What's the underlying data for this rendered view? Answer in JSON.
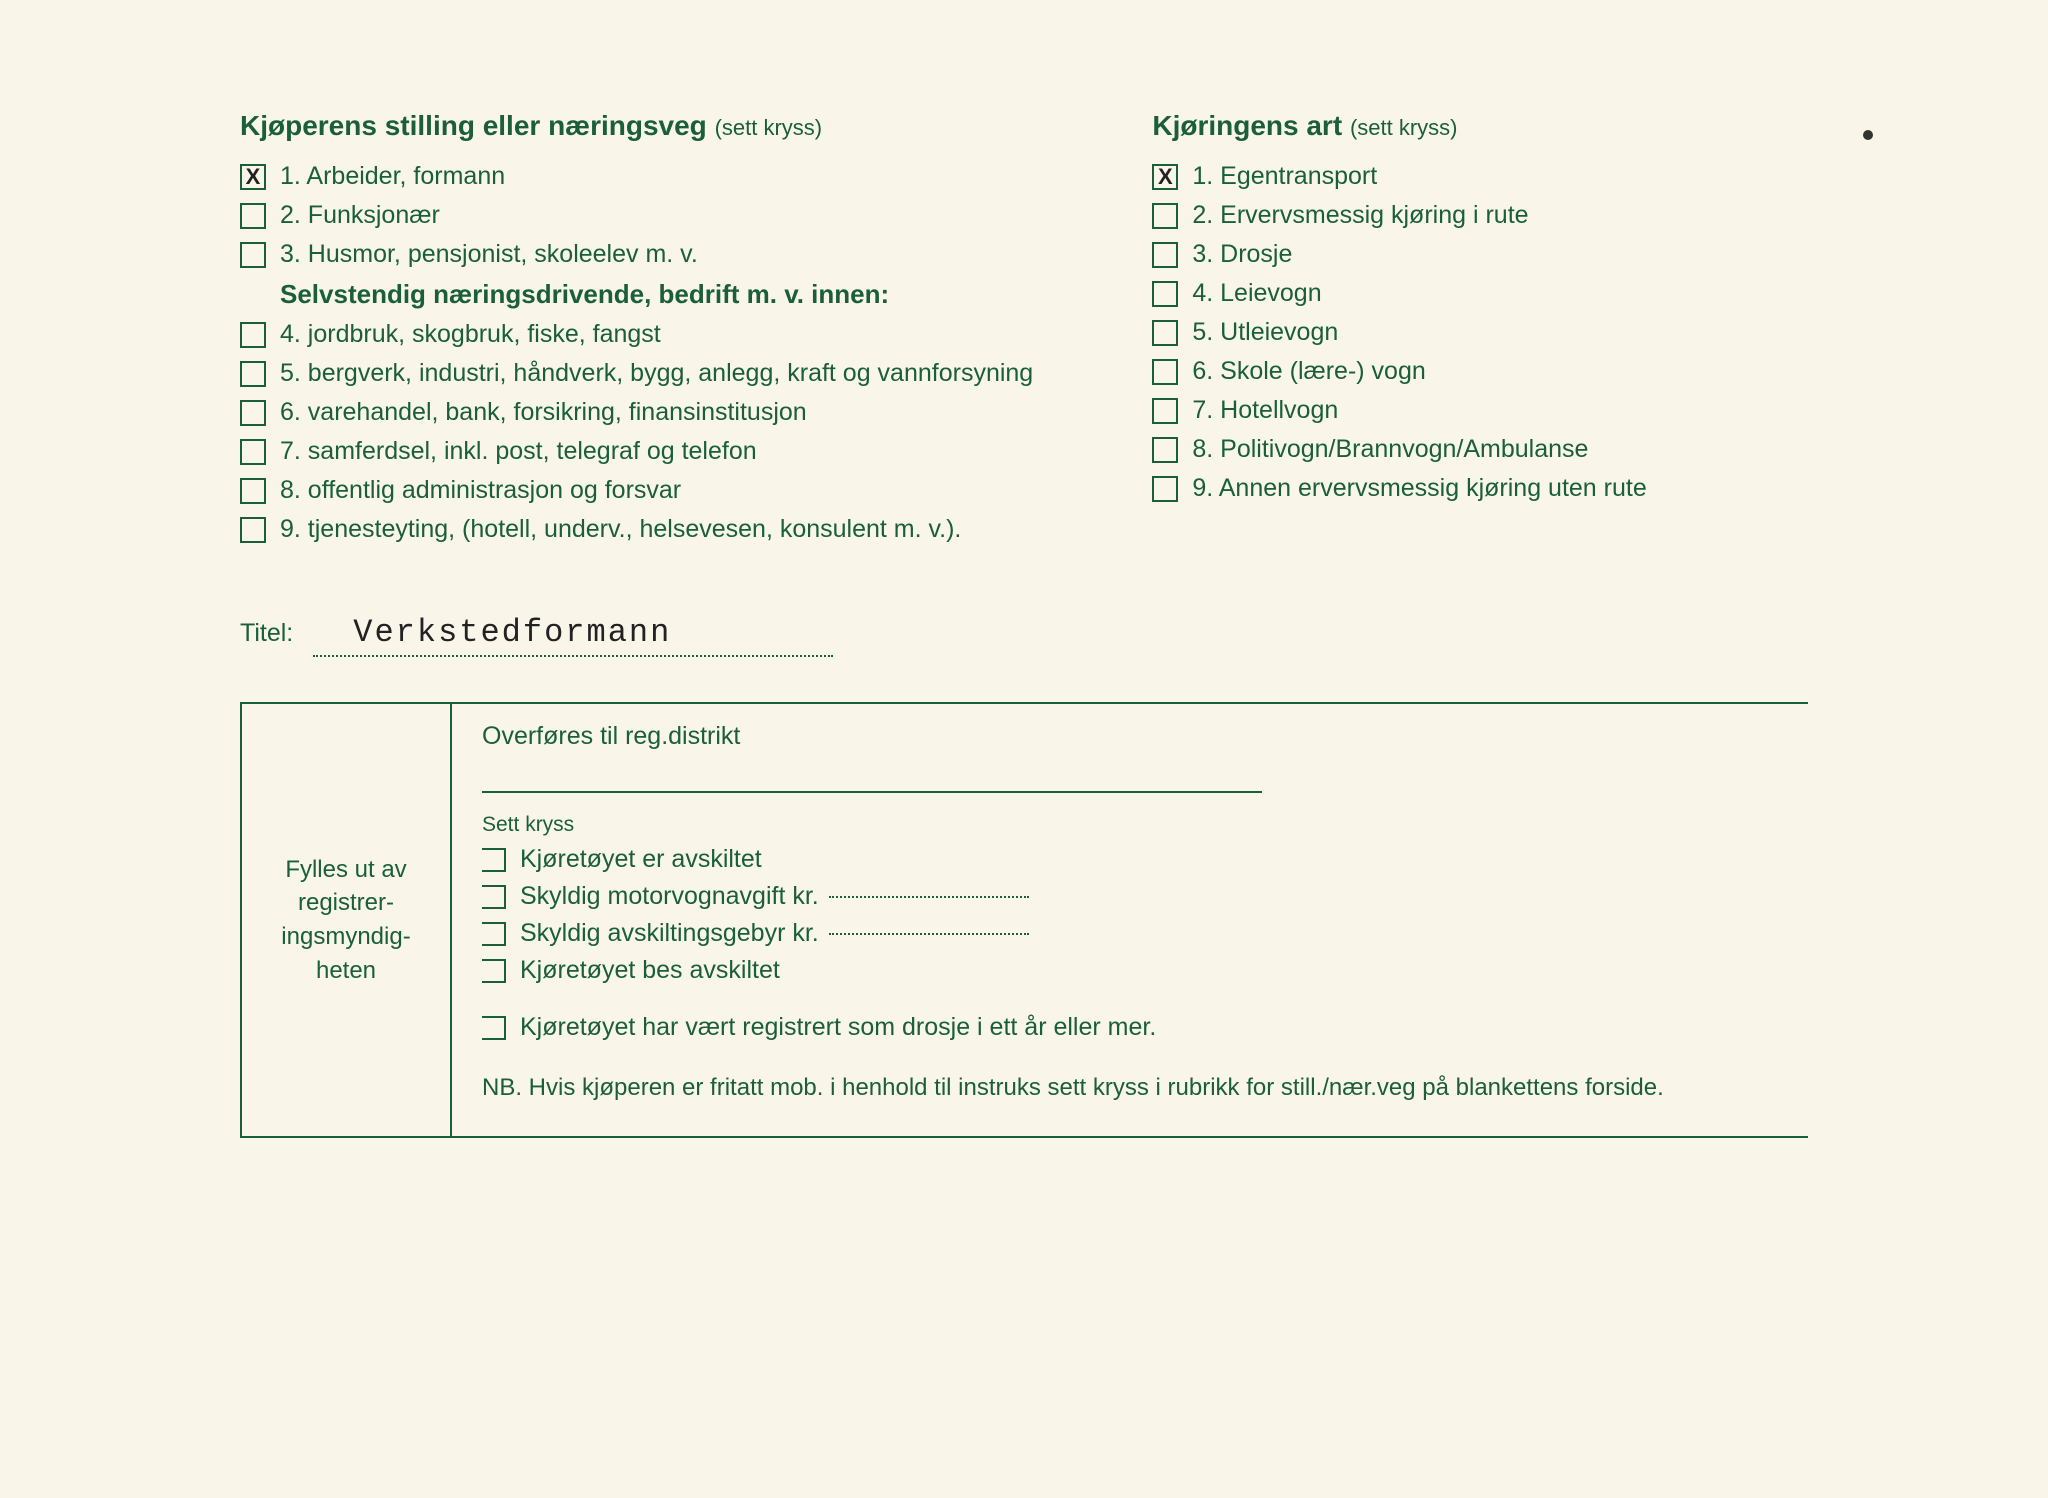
{
  "colors": {
    "text": "#1a5f3a",
    "background": "#f9f5e8",
    "typed": "#222222"
  },
  "leftSection": {
    "headingBold": "Kjøperens stilling eller næringsveg",
    "headingSmall": "(sett kryss)",
    "items": [
      {
        "num": "1.",
        "label": "Arbeider, formann",
        "checked": true
      },
      {
        "num": "2.",
        "label": "Funksjonær",
        "checked": false
      },
      {
        "num": "3.",
        "label": "Husmor, pensjonist, skoleelev m. v.",
        "checked": false
      }
    ],
    "subheading": "Selvstendig næringsdrivende, bedrift m. v. innen:",
    "subitems": [
      {
        "num": "4.",
        "label": "jordbruk, skogbruk, fiske, fangst",
        "checked": false
      },
      {
        "num": "5.",
        "label": "bergverk, industri, håndverk, bygg, anlegg, kraft og vannforsyning",
        "checked": false
      },
      {
        "num": "6.",
        "label": "varehandel, bank, forsikring, finansinstitusjon",
        "checked": false
      },
      {
        "num": "7.",
        "label": "samferdsel, inkl. post, telegraf og telefon",
        "checked": false
      },
      {
        "num": "8.",
        "label": "offentlig administrasjon og forsvar",
        "checked": false
      },
      {
        "num": "9.",
        "label": "tjenesteyting, (hotell, underv., helsevesen, konsulent m. v.).",
        "checked": false
      }
    ]
  },
  "rightSection": {
    "headingBold": "Kjøringens art",
    "headingSmall": "(sett kryss)",
    "items": [
      {
        "num": "1.",
        "label": "Egentransport",
        "checked": true
      },
      {
        "num": "2.",
        "label": "Ervervsmessig kjøring i rute",
        "checked": false
      },
      {
        "num": "3.",
        "label": "Drosje",
        "checked": false
      },
      {
        "num": "4.",
        "label": "Leievogn",
        "checked": false
      },
      {
        "num": "5.",
        "label": "Utleievogn",
        "checked": false
      },
      {
        "num": "6.",
        "label": "Skole (lære-) vogn",
        "checked": false
      },
      {
        "num": "7.",
        "label": "Hotellvogn",
        "checked": false
      },
      {
        "num": "8.",
        "label": "Politivogn/Brannvogn/Ambulanse",
        "checked": false
      },
      {
        "num": "9.",
        "label": "Annen ervervsmessig kjøring uten rute",
        "checked": false
      }
    ]
  },
  "titel": {
    "label": "Titel:",
    "value": "Verkstedformann"
  },
  "regBox": {
    "leftLabel": "Fylles ut av registrer-ingsmyndig-heten",
    "transfer": "Overføres til reg.distrikt",
    "settKryss": "Sett kryss",
    "checks": [
      {
        "label": "Kjøretøyet er avskiltet",
        "hasLine": false
      },
      {
        "label": "Skyldig motorvognavgift kr.",
        "hasLine": true
      },
      {
        "label": "Skyldig avskiltingsgebyr kr.",
        "hasLine": true
      },
      {
        "label": "Kjøretøyet bes avskiltet",
        "hasLine": false
      }
    ],
    "lastCheck": "Kjøretøyet har vært registrert som drosje i ett år eller mer.",
    "note": "NB. Hvis kjøperen er fritatt mob. i henhold til instruks sett kryss i rubrikk for still./nær.veg på blankettens forside."
  }
}
